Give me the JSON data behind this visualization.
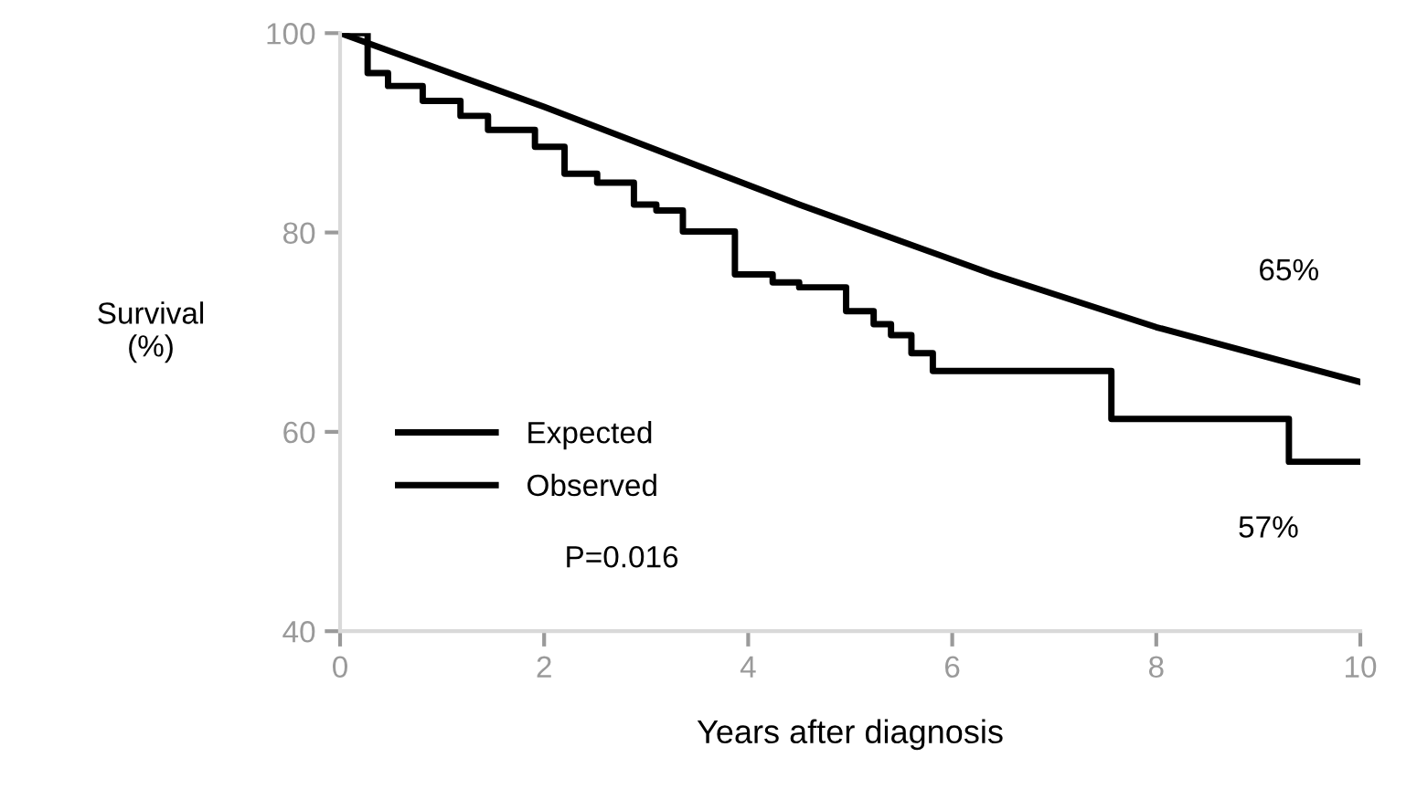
{
  "chart_data": {
    "type": "line",
    "xlabel": "Years after diagnosis",
    "ylabel": "Survival\n(%)",
    "xlim": [
      0,
      10
    ],
    "xticks": [
      0,
      2,
      4,
      6,
      8,
      10
    ],
    "ylim": [
      40,
      100
    ],
    "yticks": [
      40,
      60,
      80,
      100
    ],
    "grid": false,
    "legend": "bottom left",
    "line_style": "solid",
    "marker": "none",
    "series": [
      {
        "name": "Expected",
        "color": "#000000",
        "x": [
          0,
          2,
          4.5,
          6.4,
          8,
          10
        ],
        "values": [
          100,
          92.6,
          82.8,
          75.8,
          70.5,
          65
        ]
      },
      {
        "name": "Observed",
        "type": "step",
        "color": "#000000",
        "x": [
          0,
          0.27,
          0.47,
          0.81,
          1.18,
          1.45,
          1.91,
          2.2,
          2.52,
          2.88,
          3.1,
          3.36,
          3.87,
          4.24,
          4.5,
          4.96,
          5.23,
          5.4,
          5.6,
          5.81,
          7.56,
          9.3,
          10
        ],
        "values": [
          100,
          96,
          94.7,
          93.2,
          91.7,
          90.3,
          88.6,
          85.9,
          85,
          82.8,
          82.2,
          80.1,
          75.8,
          75,
          74.5,
          72.1,
          70.8,
          69.7,
          67.9,
          66.1,
          61.3,
          57,
          57
        ]
      }
    ],
    "annotations": [
      "65%",
      "57%",
      "P=0.016"
    ]
  }
}
